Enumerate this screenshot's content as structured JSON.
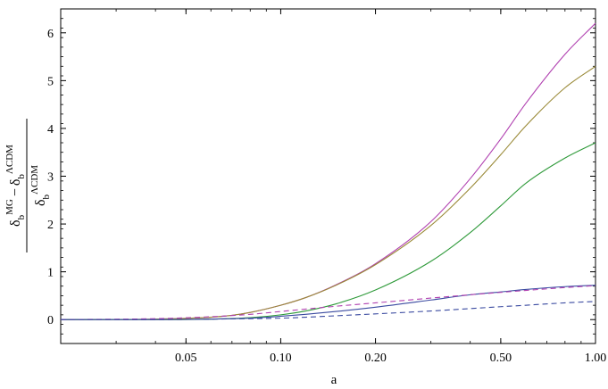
{
  "chart_data": {
    "type": "line",
    "xlabel": "a",
    "ylabel": {
      "numerator_first": "δ",
      "numerator_first_sub": "b",
      "numerator_first_sup": "MG",
      "numerator_operator": "−",
      "numerator_second": "δ",
      "numerator_second_sub": "b",
      "numerator_second_sup": "ΛCDM",
      "denominator": "δ",
      "denominator_sub": "b",
      "denominator_sup": "ΛCDM"
    },
    "x_scale": "log",
    "xlim": [
      0.02,
      1.0
    ],
    "ylim": [
      -0.5,
      6.5
    ],
    "xticks": [
      0.05,
      0.1,
      0.2,
      0.5,
      1.0
    ],
    "xtick_labels": [
      "0.05",
      "0.10",
      "0.20",
      "0.50",
      "1.00"
    ],
    "yticks": [
      0,
      1,
      2,
      3,
      4,
      5,
      6
    ],
    "ytick_labels": [
      "0",
      "1",
      "2",
      "3",
      "4",
      "5",
      "6"
    ],
    "grid": false,
    "series": [
      {
        "color": "#b040b0",
        "dash": "solid",
        "x": [
          0.02,
          0.04,
          0.06,
          0.07,
          0.08,
          0.1,
          0.12,
          0.15,
          0.2,
          0.3,
          0.4,
          0.5,
          0.6,
          0.8,
          1.0
        ],
        "y": [
          0,
          0.01,
          0.05,
          0.09,
          0.15,
          0.3,
          0.46,
          0.73,
          1.17,
          2.05,
          2.95,
          3.78,
          4.52,
          5.55,
          6.2
        ]
      },
      {
        "color": "#9a8a38",
        "dash": "solid",
        "x": [
          0.02,
          0.04,
          0.06,
          0.07,
          0.08,
          0.1,
          0.12,
          0.15,
          0.2,
          0.3,
          0.4,
          0.5,
          0.6,
          0.8,
          1.0
        ],
        "y": [
          0,
          0.01,
          0.05,
          0.09,
          0.15,
          0.3,
          0.46,
          0.72,
          1.15,
          1.97,
          2.75,
          3.45,
          4.05,
          4.85,
          5.3
        ]
      },
      {
        "color": "#2f9a3a",
        "dash": "solid",
        "x": [
          0.02,
          0.04,
          0.06,
          0.08,
          0.1,
          0.12,
          0.15,
          0.2,
          0.3,
          0.4,
          0.5,
          0.6,
          0.8,
          1.0
        ],
        "y": [
          0,
          0,
          0.01,
          0.04,
          0.1,
          0.18,
          0.33,
          0.62,
          1.22,
          1.82,
          2.38,
          2.85,
          3.38,
          3.7
        ]
      },
      {
        "color": "#3a4aa0",
        "dash": "solid",
        "x": [
          0.02,
          0.04,
          0.06,
          0.08,
          0.1,
          0.12,
          0.15,
          0.2,
          0.3,
          0.4,
          0.5,
          0.6,
          0.8,
          1.0
        ],
        "y": [
          0,
          0,
          0.01,
          0.03,
          0.07,
          0.11,
          0.17,
          0.26,
          0.41,
          0.52,
          0.58,
          0.63,
          0.69,
          0.72
        ]
      },
      {
        "color": "#b040b0",
        "dash": "dashed",
        "x": [
          0.02,
          0.04,
          0.06,
          0.08,
          0.1,
          0.12,
          0.15,
          0.2,
          0.3,
          0.4,
          0.5,
          0.6,
          0.8,
          1.0
        ],
        "y": [
          0,
          0.02,
          0.06,
          0.11,
          0.17,
          0.22,
          0.28,
          0.35,
          0.45,
          0.52,
          0.57,
          0.61,
          0.67,
          0.71
        ]
      },
      {
        "color": "#3a4aa0",
        "dash": "dashed",
        "x": [
          0.02,
          0.04,
          0.06,
          0.08,
          0.1,
          0.12,
          0.15,
          0.2,
          0.3,
          0.4,
          0.5,
          0.6,
          0.8,
          1.0
        ],
        "y": [
          0,
          0,
          0.01,
          0.02,
          0.03,
          0.05,
          0.08,
          0.12,
          0.18,
          0.23,
          0.27,
          0.3,
          0.35,
          0.38
        ]
      }
    ]
  }
}
